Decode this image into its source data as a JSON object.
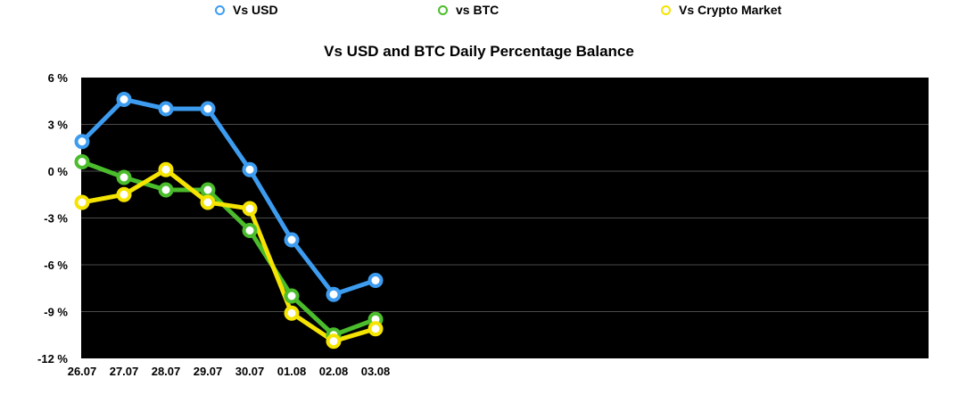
{
  "chart_data": {
    "type": "line",
    "title": "Vs USD and BTC Daily Percentage Balance",
    "categories": [
      "26.07",
      "27.07",
      "28.07",
      "29.07",
      "30.07",
      "01.08",
      "02.08",
      "03.08"
    ],
    "y_ticks": [
      "6 %",
      "3 %",
      "0 %",
      "-3 %",
      "-6 %",
      "-9 %",
      "-12 %"
    ],
    "ylim": [
      -12,
      6
    ],
    "series": [
      {
        "name": "Vs USD",
        "color": "#3d9cf0",
        "values": [
          1.9,
          4.6,
          4.0,
          4.0,
          0.1,
          -4.4,
          -7.9,
          -7.0
        ]
      },
      {
        "name": "vs BTC",
        "color": "#4bbd2c",
        "values": [
          0.6,
          -0.4,
          -1.2,
          -1.2,
          -3.8,
          -8.0,
          -10.5,
          -9.5
        ]
      },
      {
        "name": "Vs Crypto Market",
        "color": "#f5e400",
        "values": [
          -2.0,
          -1.5,
          0.1,
          -2.0,
          -2.4,
          -9.1,
          -10.9,
          -10.1
        ]
      }
    ],
    "grid": true,
    "legend": "top",
    "background": "#000000"
  }
}
